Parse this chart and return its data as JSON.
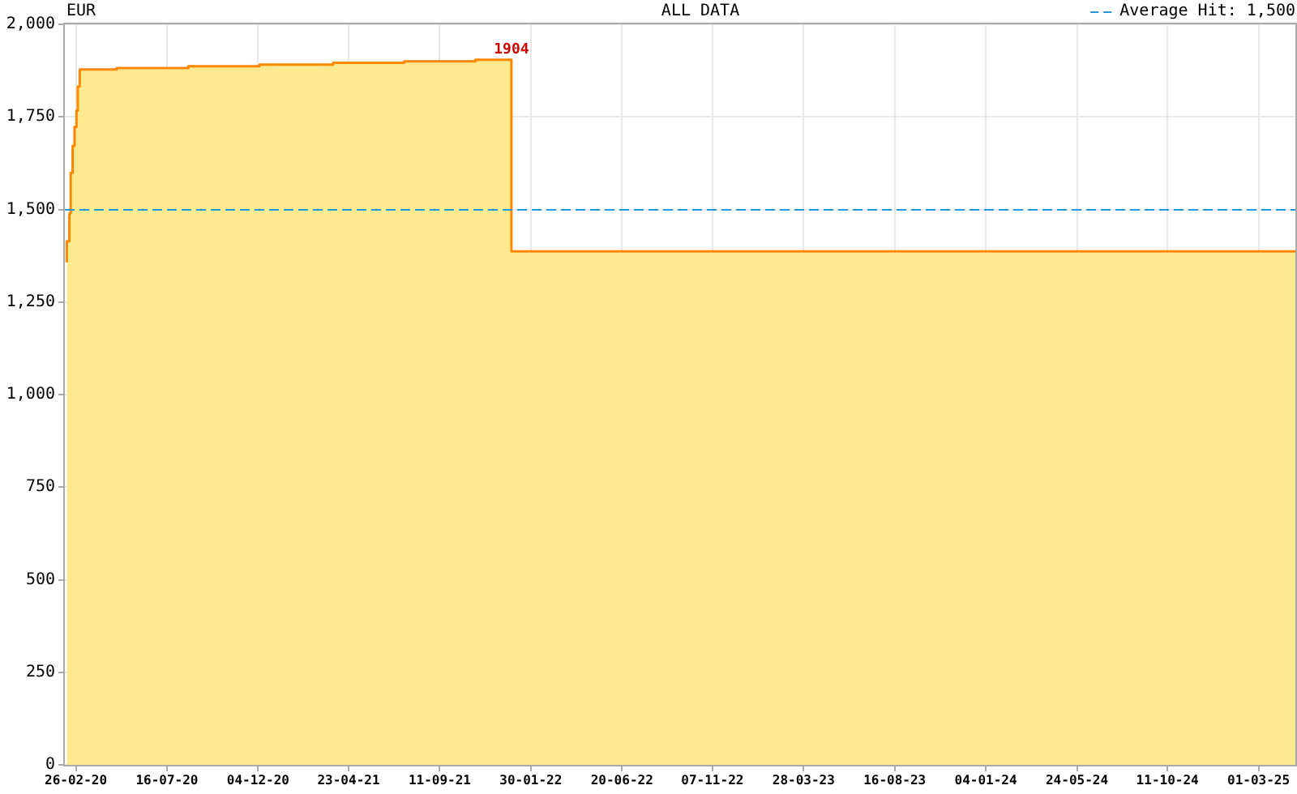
{
  "chart_data": {
    "type": "area",
    "title": "EUR",
    "subtitle": "ALL DATA",
    "x": [
      "2020-02-12",
      "2020-02-16",
      "2020-02-18",
      "2020-02-21",
      "2020-02-24",
      "2020-02-27",
      "2020-02-29",
      "2020-03-03",
      "2020-04-29",
      "2020-08-18",
      "2020-12-06",
      "2021-03-30",
      "2021-07-18",
      "2021-11-05",
      "2021-12-31",
      "2025-04-27"
    ],
    "series": [
      {
        "color": "#fde98f",
        "values": [
          1357,
          1414,
          1489,
          1599,
          1672,
          1723,
          1767,
          1832,
          1878,
          1882,
          1887,
          1891,
          1896,
          1900,
          1904,
          1387
        ]
      },
      {
        "type": "step",
        "color": "#ff8800",
        "values": [
          1357,
          1414,
          1489,
          1599,
          1672,
          1723,
          1767,
          1832,
          1878,
          1882,
          1887,
          1891,
          1896,
          1900,
          1904,
          1387
        ],
        "value_labels": [
          null,
          null,
          null,
          null,
          null,
          null,
          null,
          null,
          null,
          null,
          null,
          null,
          null,
          null,
          "1904",
          null
        ]
      }
    ],
    "xlim": [
      "2020-02-09",
      "2025-04-27"
    ],
    "xticks": [
      {
        "value": "2020-02-26",
        "label": "26-02-20"
      },
      {
        "value": "2020-07-16",
        "label": "16-07-20"
      },
      {
        "value": "2020-12-04",
        "label": "04-12-20"
      },
      {
        "value": "2021-04-23",
        "label": "23-04-21"
      },
      {
        "value": "2021-09-11",
        "label": "11-09-21"
      },
      {
        "value": "2022-01-30",
        "label": "30-01-22"
      },
      {
        "value": "2022-06-20",
        "label": "20-06-22"
      },
      {
        "value": "2022-11-07",
        "label": "07-11-22"
      },
      {
        "value": "2023-03-28",
        "label": "28-03-23"
      },
      {
        "value": "2023-08-16",
        "label": "16-08-23"
      },
      {
        "value": "2024-01-04",
        "label": "04-01-24"
      },
      {
        "value": "2024-05-24",
        "label": "24-05-24"
      },
      {
        "value": "2024-10-11",
        "label": "11-10-24"
      },
      {
        "value": "2025-03-01",
        "label": "01-03-25"
      }
    ],
    "ylim": [
      0,
      2000
    ],
    "yticks": [
      0,
      250,
      500,
      750,
      {
        "value": 1000,
        "label": "1,000"
      },
      {
        "value": 1250,
        "label": "1,250"
      },
      {
        "value": 1500,
        "label": "1,500"
      },
      {
        "value": 1750,
        "label": "1,750"
      },
      {
        "value": 2000,
        "label": "2,000"
      }
    ],
    "grid": true,
    "legend": "top right",
    "ref_lines": [
      {
        "axis": "y",
        "value": 1500,
        "label": "Average Hit: 1,500",
        "color": "#2299dd",
        "line_style": "dashed"
      }
    ]
  }
}
